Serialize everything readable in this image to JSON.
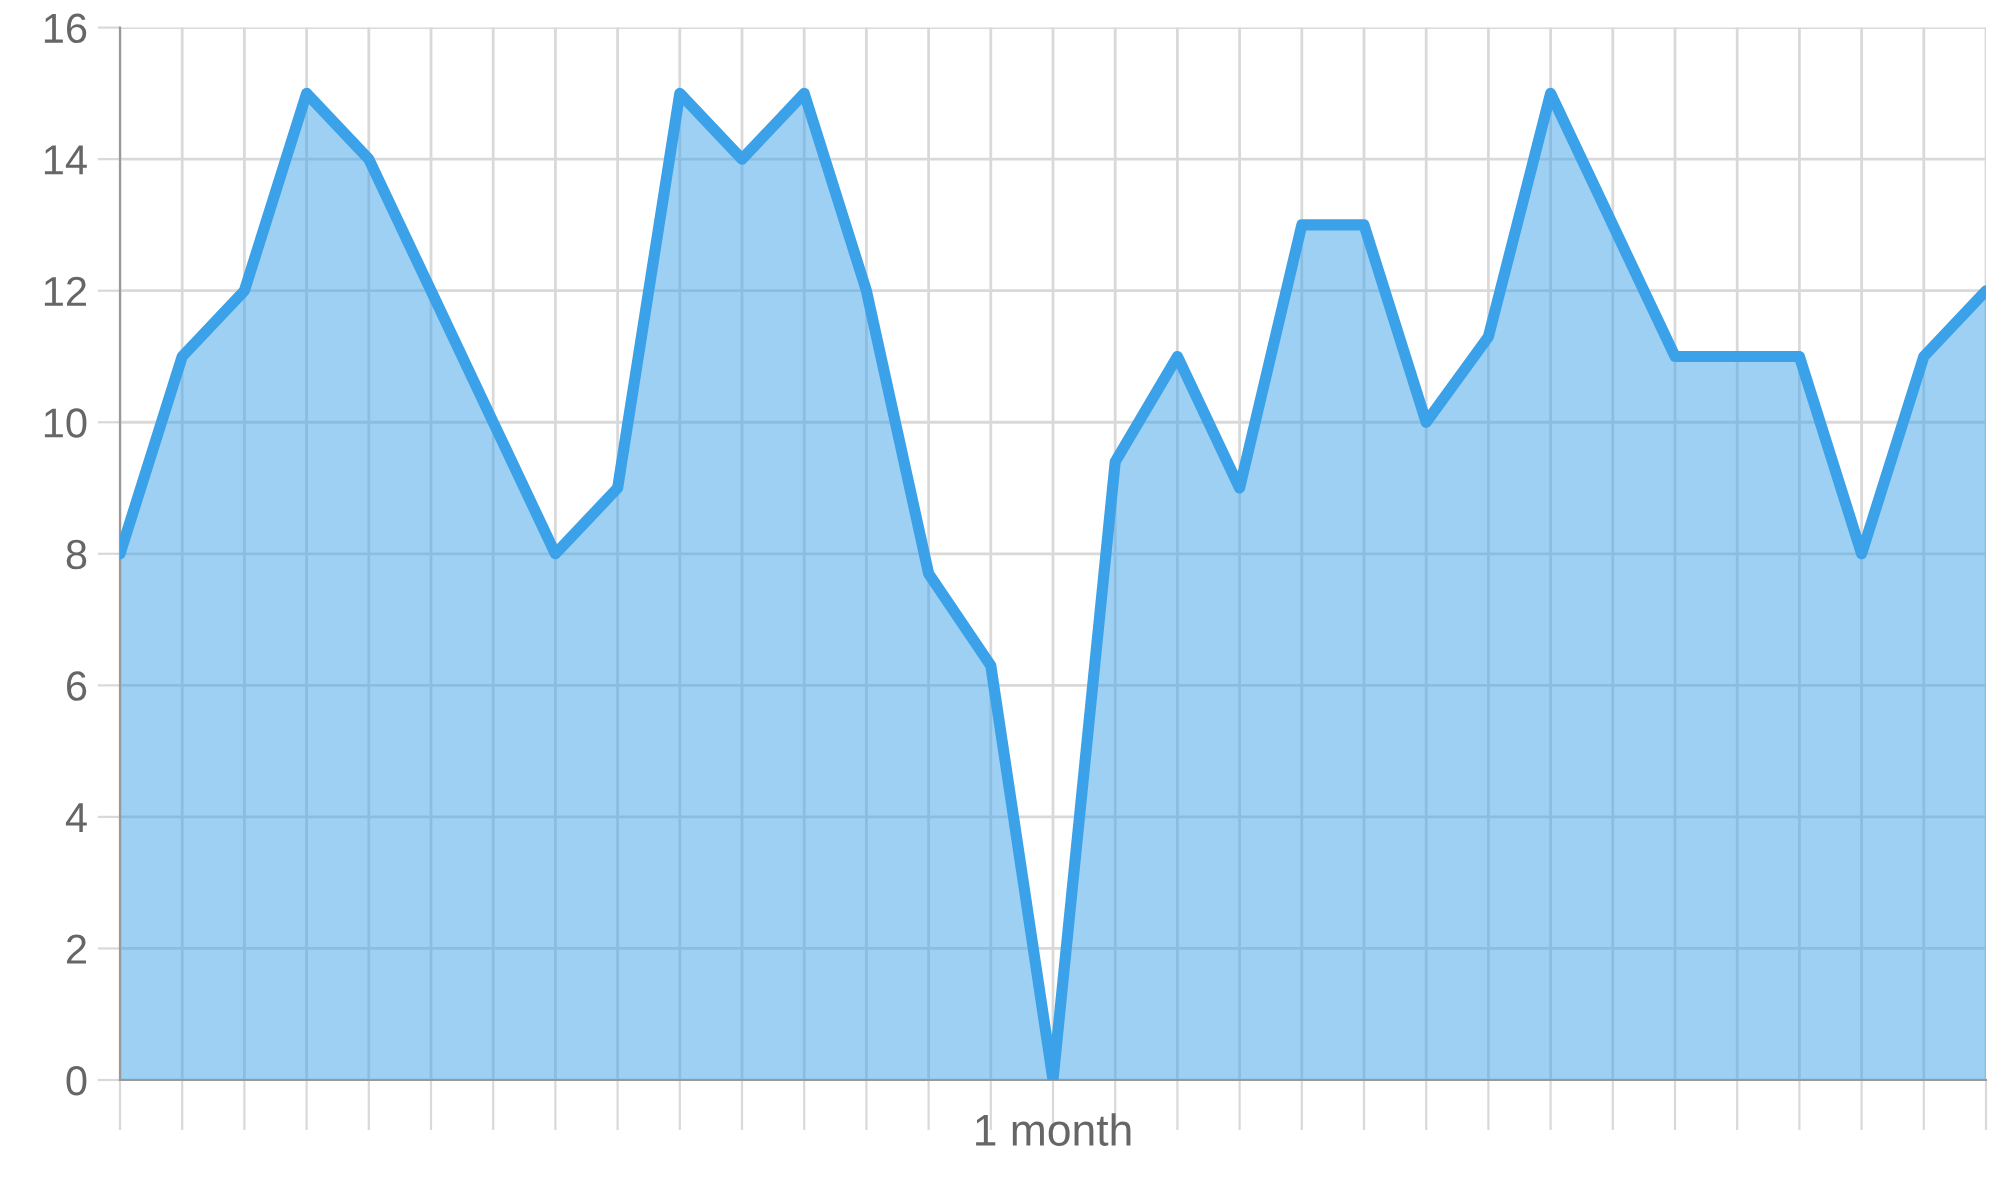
{
  "chart_data": {
    "type": "area",
    "xlabel": "1 month",
    "categories": [
      null,
      null,
      null,
      null,
      null,
      null,
      null,
      null,
      null,
      null,
      null,
      null,
      null,
      null,
      null,
      null,
      null,
      null,
      null,
      null,
      null,
      null,
      null,
      null,
      null,
      null,
      null,
      null,
      null,
      null,
      null
    ],
    "series": [
      {
        "color": "#3ba1e8",
        "values": [
          8,
          11,
          12,
          15,
          14,
          12,
          10,
          8,
          9,
          15,
          14,
          15,
          12,
          7.7,
          6.3,
          0,
          9.4,
          11,
          9,
          13,
          13,
          10,
          11.3,
          15,
          13,
          11,
          11,
          11,
          8,
          11,
          12
        ]
      }
    ],
    "ylim": [
      0,
      16
    ],
    "yticks": [
      0,
      2,
      4,
      6,
      8,
      10,
      12,
      14,
      16
    ],
    "grid": true,
    "legend": false,
    "marker": "none",
    "line_style": "solid"
  }
}
